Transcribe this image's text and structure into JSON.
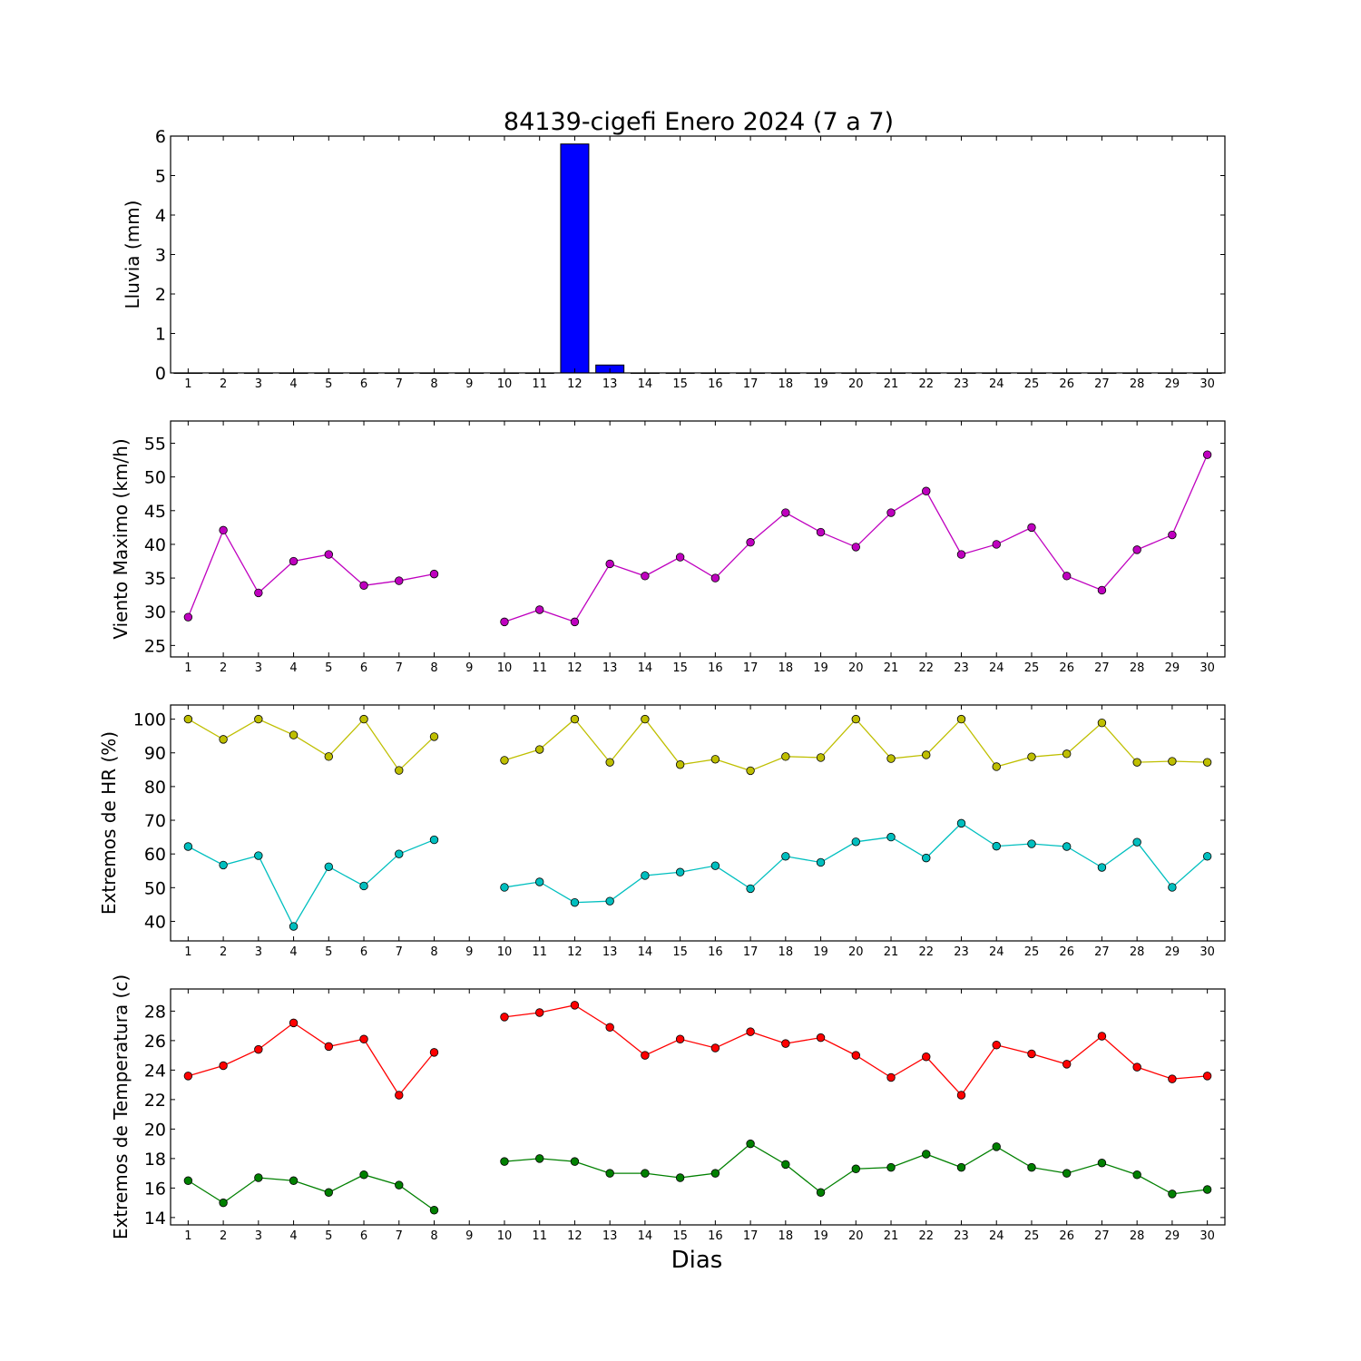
{
  "chart_data": {
    "title": "84139-cigefi Enero 2024  (7 a 7)",
    "xlabel": "Dias",
    "days": [
      1,
      2,
      3,
      4,
      5,
      6,
      7,
      8,
      9,
      10,
      11,
      12,
      13,
      14,
      15,
      16,
      17,
      18,
      19,
      20,
      21,
      22,
      23,
      24,
      25,
      26,
      27,
      28,
      29,
      30
    ],
    "panels": [
      {
        "type": "bar",
        "ylabel": "Lluvia (mm)",
        "ylim": [
          0,
          6
        ],
        "yticks": [
          0,
          1,
          2,
          3,
          4,
          5,
          6
        ],
        "xlim": [
          0.5,
          30.5
        ],
        "series": [
          {
            "color": "#0000ff",
            "values": [
              0,
              0,
              0,
              0,
              0,
              0,
              0,
              0,
              0,
              0,
              0,
              5.8,
              0.2,
              0,
              0,
              0,
              0,
              0,
              0,
              0,
              0,
              0,
              0,
              0,
              0,
              0,
              0,
              0,
              0,
              0
            ]
          }
        ]
      },
      {
        "type": "line",
        "ylabel": "Viento Maximo (km/h)",
        "ylim": [
          23.3,
          58.3
        ],
        "yticks": [
          25,
          30,
          35,
          40,
          45,
          50,
          55
        ],
        "xlim": [
          0.5,
          30.5
        ],
        "series": [
          {
            "color": "#bf00bf",
            "values": [
              29.2,
              42.1,
              32.8,
              37.5,
              38.5,
              33.9,
              34.6,
              35.6,
              null,
              28.5,
              30.3,
              28.5,
              37.1,
              35.3,
              38.1,
              35.0,
              40.3,
              44.7,
              41.8,
              39.6,
              44.7,
              47.9,
              38.5,
              40.0,
              42.5,
              35.3,
              33.2,
              39.2,
              41.4,
              53.3
            ]
          }
        ]
      },
      {
        "type": "line",
        "ylabel": "Extremos de HR (%)",
        "ylim": [
          34.2,
          104.2
        ],
        "yticks": [
          40,
          50,
          60,
          70,
          80,
          90,
          100
        ],
        "xlim": [
          0.5,
          30.5
        ],
        "series": [
          {
            "color": "#bfbf00",
            "values": [
              100,
              94,
              100,
              95.3,
              88.9,
              100,
              84.8,
              94.8,
              null,
              87.8,
              91,
              100,
              87.2,
              100,
              86.5,
              88.1,
              84.7,
              88.9,
              88.6,
              100,
              88.3,
              89.4,
              100,
              85.9,
              88.8,
              89.7,
              98.9,
              87.2,
              87.5,
              87.2
            ]
          },
          {
            "color": "#00bfbf",
            "values": [
              62.2,
              56.7,
              59.5,
              38.5,
              56.2,
              50.5,
              60,
              64.2,
              null,
              50.1,
              51.7,
              45.6,
              46,
              53.6,
              54.6,
              56.5,
              49.7,
              59.3,
              57.5,
              63.6,
              65,
              58.8,
              69.1,
              62.3,
              63,
              62.2,
              56,
              63.5,
              50.1,
              59.3
            ]
          }
        ]
      },
      {
        "type": "line",
        "ylabel": "Extremos de Temperatura (c)",
        "ylim": [
          13.5,
          29.5
        ],
        "yticks": [
          14,
          16,
          18,
          20,
          22,
          24,
          26,
          28
        ],
        "xlim": [
          0.5,
          30.5
        ],
        "series": [
          {
            "color": "#ff0000",
            "values": [
              23.6,
              24.3,
              25.4,
              27.2,
              25.6,
              26.1,
              22.3,
              25.2,
              null,
              27.6,
              27.9,
              28.4,
              26.9,
              25,
              26.1,
              25.5,
              26.6,
              25.8,
              26.2,
              25,
              23.5,
              24.9,
              22.3,
              25.7,
              25.1,
              24.4,
              26.3,
              24.2,
              23.4,
              23.6
            ]
          },
          {
            "color": "#008000",
            "values": [
              16.5,
              15,
              16.7,
              16.5,
              15.7,
              16.9,
              16.2,
              14.5,
              null,
              17.8,
              18,
              17.8,
              17,
              17,
              16.7,
              17,
              19,
              17.6,
              15.7,
              17.3,
              17.4,
              18.3,
              17.4,
              18.8,
              17.4,
              17,
              17.7,
              16.9,
              15.6,
              15.9
            ]
          }
        ]
      }
    ]
  }
}
